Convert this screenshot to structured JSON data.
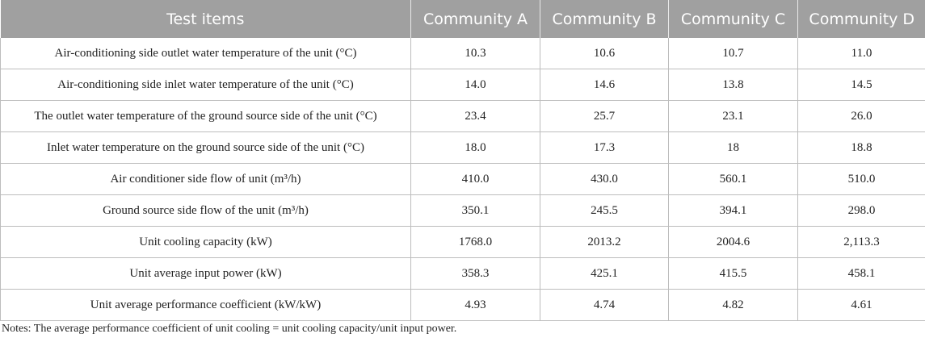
{
  "table": {
    "headers": [
      "Test items",
      "Community A",
      "Community B",
      "Community C",
      "Community D"
    ],
    "rows": [
      {
        "label": "Air-conditioning side outlet water temperature of the unit (°C)",
        "values": [
          "10.3",
          "10.6",
          "10.7",
          "11.0"
        ]
      },
      {
        "label": "Air-conditioning side inlet water temperature of the unit (°C)",
        "values": [
          "14.0",
          "14.6",
          "13.8",
          "14.5"
        ]
      },
      {
        "label": "The outlet water temperature of the ground source side of the unit (°C)",
        "values": [
          "23.4",
          "25.7",
          "23.1",
          "26.0"
        ]
      },
      {
        "label": "Inlet water temperature on the ground source side of the unit (°C)",
        "values": [
          "18.0",
          "17.3",
          "18",
          "18.8"
        ]
      },
      {
        "label": "Air conditioner side flow of unit (m³/h)",
        "values": [
          "410.0",
          "430.0",
          "560.1",
          "510.0"
        ]
      },
      {
        "label": "Ground source side flow of the unit (m³/h)",
        "values": [
          "350.1",
          "245.5",
          "394.1",
          "298.0"
        ]
      },
      {
        "label": "Unit cooling capacity (kW)",
        "values": [
          "1768.0",
          "2013.2",
          "2004.6",
          "2,113.3"
        ]
      },
      {
        "label": "Unit average input power (kW)",
        "values": [
          "358.3",
          "425.1",
          "415.5",
          "458.1"
        ]
      },
      {
        "label": "Unit average performance coefficient (kW/kW)",
        "values": [
          "4.93",
          "4.74",
          "4.82",
          "4.61"
        ]
      }
    ]
  },
  "note": "Notes: The average performance coefficient of unit cooling = unit cooling capacity/unit input power."
}
